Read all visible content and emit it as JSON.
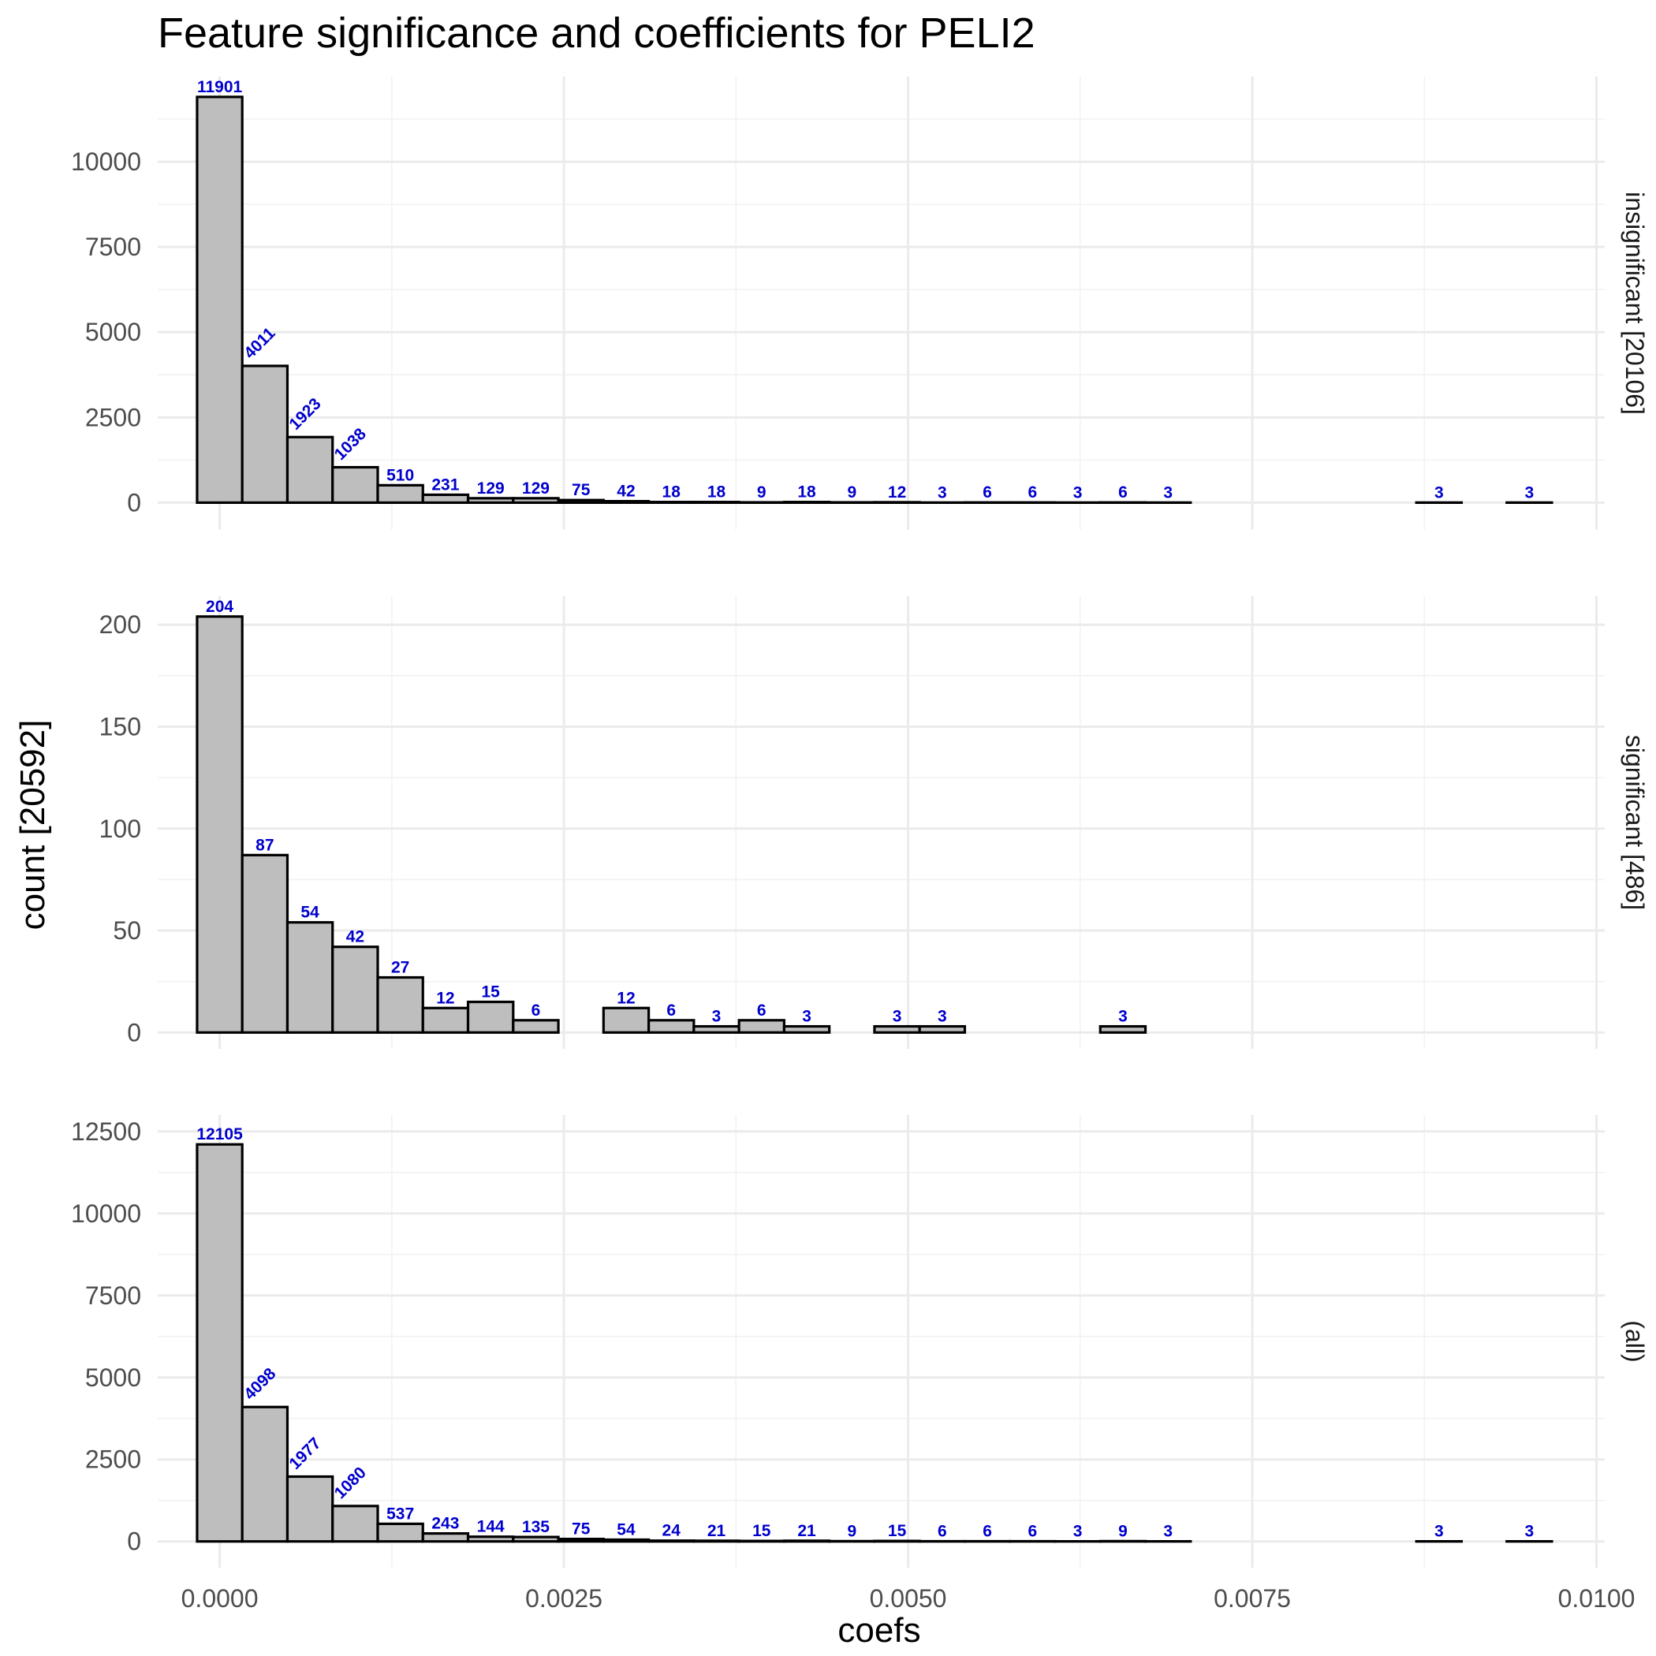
{
  "chart_data": {
    "type": "bar",
    "title": "Feature significance and coefficients for PELI2",
    "xlabel": "coefs",
    "ylabel": "count [20592]",
    "xlim": [
      -0.00045,
      0.01006
    ],
    "x_ticks": [
      0,
      0.0025,
      0.005,
      0.0075,
      0.01
    ],
    "x_tick_labels": [
      "0.0000",
      "0.0025",
      "0.0050",
      "0.0075",
      "0.0100"
    ],
    "bin_width": 0.000328,
    "bin_start": -0.000164,
    "n_bins": 30,
    "grid": true,
    "bar_fill": "#bebebe",
    "bar_stroke": "#000000",
    "label_color": "#0000cd",
    "panels": [
      {
        "name": "insignificant [20106]",
        "ylim": [
          -800,
          12500
        ],
        "y_ticks": [
          0,
          2500,
          5000,
          7500,
          10000
        ],
        "y_tick_labels": [
          "0",
          "2500",
          "5000",
          "7500",
          "10000"
        ],
        "counts": [
          11901,
          4011,
          1923,
          1038,
          510,
          231,
          129,
          129,
          75,
          42,
          18,
          18,
          9,
          18,
          9,
          12,
          3,
          6,
          6,
          3,
          6,
          3,
          0,
          0,
          0,
          0,
          0,
          3,
          0,
          3
        ],
        "labels": [
          "11901",
          "4011",
          "1923",
          "1038",
          "510",
          "231",
          "129",
          "129",
          "75",
          "42",
          "18",
          "18",
          "9",
          "18",
          "9",
          "12",
          "3",
          "6",
          "6",
          "3",
          "6",
          "3",
          "",
          "",
          "",
          "",
          "",
          "3",
          "",
          "3"
        ]
      },
      {
        "name": "significant [486]",
        "ylim": [
          -8,
          214
        ],
        "y_ticks": [
          0,
          50,
          100,
          150,
          200
        ],
        "y_tick_labels": [
          "0",
          "50",
          "100",
          "150",
          "200"
        ],
        "counts": [
          204,
          87,
          54,
          42,
          27,
          12,
          15,
          6,
          0,
          12,
          6,
          3,
          6,
          3,
          0,
          3,
          3,
          0,
          0,
          0,
          3,
          0,
          0,
          0,
          0,
          0,
          0,
          0,
          0,
          0
        ],
        "labels": [
          "204",
          "87",
          "54",
          "42",
          "27",
          "12",
          "15",
          "6",
          "",
          "12",
          "6",
          "3",
          "6",
          "3",
          "",
          "3",
          "3",
          "",
          "",
          "",
          "3",
          "",
          "",
          "",
          "",
          "",
          "",
          "",
          "",
          ""
        ]
      },
      {
        "name": "(all)",
        "ylim": [
          -800,
          13000
        ],
        "y_ticks": [
          0,
          2500,
          5000,
          7500,
          10000,
          12500
        ],
        "y_tick_labels": [
          "0",
          "2500",
          "5000",
          "7500",
          "10000",
          "12500"
        ],
        "counts": [
          12105,
          4098,
          1977,
          1080,
          537,
          243,
          144,
          135,
          75,
          54,
          24,
          21,
          15,
          21,
          9,
          15,
          6,
          6,
          6,
          3,
          9,
          3,
          0,
          0,
          0,
          0,
          0,
          3,
          0,
          3
        ],
        "labels": [
          "12105",
          "4098",
          "1977",
          "1080",
          "537",
          "243",
          "144",
          "135",
          "75",
          "54",
          "24",
          "21",
          "15",
          "21",
          "9",
          "15",
          "6",
          "6",
          "6",
          "3",
          "9",
          "3",
          "",
          "",
          "",
          "",
          "",
          "3",
          "",
          "3"
        ]
      }
    ]
  }
}
